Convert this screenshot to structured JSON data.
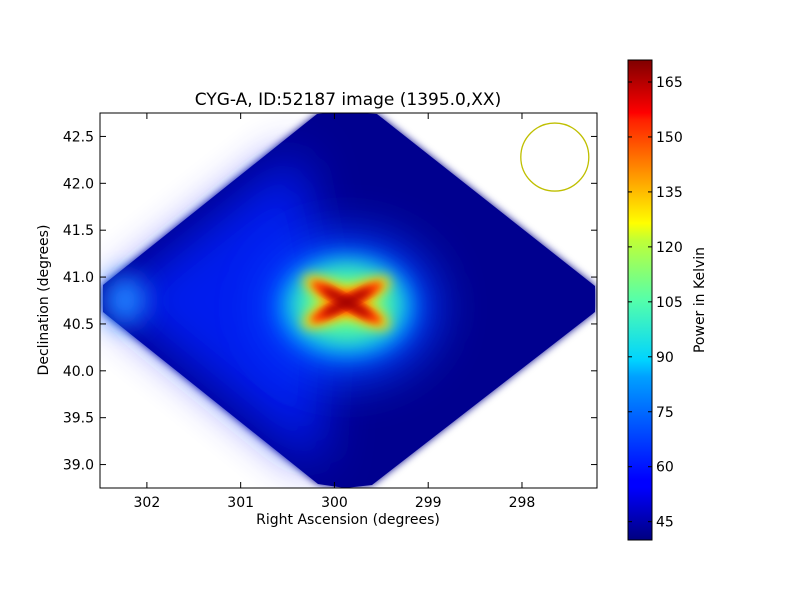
{
  "chart_data": {
    "type": "heatmap",
    "title": "CYG-A, ID:52187 image (1395.0,XX)",
    "xlabel": "Right Ascension (degrees)",
    "ylabel": "Declination (degrees)",
    "xlim": [
      302.5,
      297.2
    ],
    "ylim": [
      38.75,
      42.75
    ],
    "x_ticks": [
      302,
      301,
      300,
      299,
      298
    ],
    "y_ticks": [
      39.0,
      39.5,
      40.0,
      40.5,
      41.0,
      41.5,
      42.0,
      42.5
    ],
    "colorbar": {
      "label": "Power in Kelvin",
      "range": [
        40,
        171
      ],
      "ticks": [
        45,
        60,
        75,
        90,
        105,
        120,
        135,
        150,
        165
      ],
      "colormap": "jet"
    },
    "source": {
      "ra": 299.87,
      "dec": 40.73,
      "peak": 171
    },
    "background_level": 40,
    "beam": {
      "ra": 297.65,
      "dec": 42.28,
      "color": "#bfbf00"
    },
    "grid": false
  }
}
